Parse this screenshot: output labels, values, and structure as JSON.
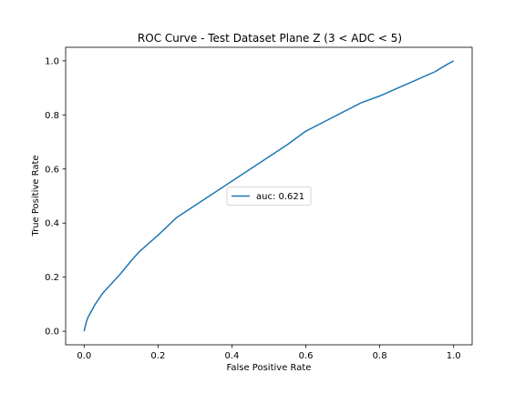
{
  "chart_data": {
    "type": "line",
    "title": "ROC Curve - Test Dataset Plane Z (3 < ADC < 5)",
    "xlabel": "False Positive Rate",
    "ylabel": "True Positive Rate",
    "xlim": [
      -0.05,
      1.05
    ],
    "ylim": [
      -0.05,
      1.05
    ],
    "xticks": [
      0.0,
      0.2,
      0.4,
      0.6,
      0.8,
      1.0
    ],
    "yticks": [
      0.0,
      0.2,
      0.4,
      0.6,
      0.8,
      1.0
    ],
    "xtick_labels": [
      "0.0",
      "0.2",
      "0.4",
      "0.6",
      "0.8",
      "1.0"
    ],
    "ytick_labels": [
      "0.0",
      "0.2",
      "0.4",
      "0.6",
      "0.8",
      "1.0"
    ],
    "grid": false,
    "legend_position": "center",
    "series": [
      {
        "name": "auc: 0.621",
        "color": "#1f77b4",
        "x": [
          0.0,
          0.005,
          0.01,
          0.02,
          0.03,
          0.05,
          0.07,
          0.1,
          0.13,
          0.15,
          0.2,
          0.25,
          0.3,
          0.35,
          0.4,
          0.45,
          0.5,
          0.55,
          0.6,
          0.65,
          0.7,
          0.75,
          0.8,
          0.85,
          0.9,
          0.95,
          0.98,
          1.0
        ],
        "y": [
          0.0,
          0.03,
          0.05,
          0.075,
          0.1,
          0.14,
          0.17,
          0.215,
          0.265,
          0.295,
          0.355,
          0.42,
          0.465,
          0.51,
          0.555,
          0.6,
          0.645,
          0.69,
          0.74,
          0.775,
          0.81,
          0.845,
          0.87,
          0.9,
          0.93,
          0.96,
          0.985,
          1.0
        ]
      }
    ]
  }
}
